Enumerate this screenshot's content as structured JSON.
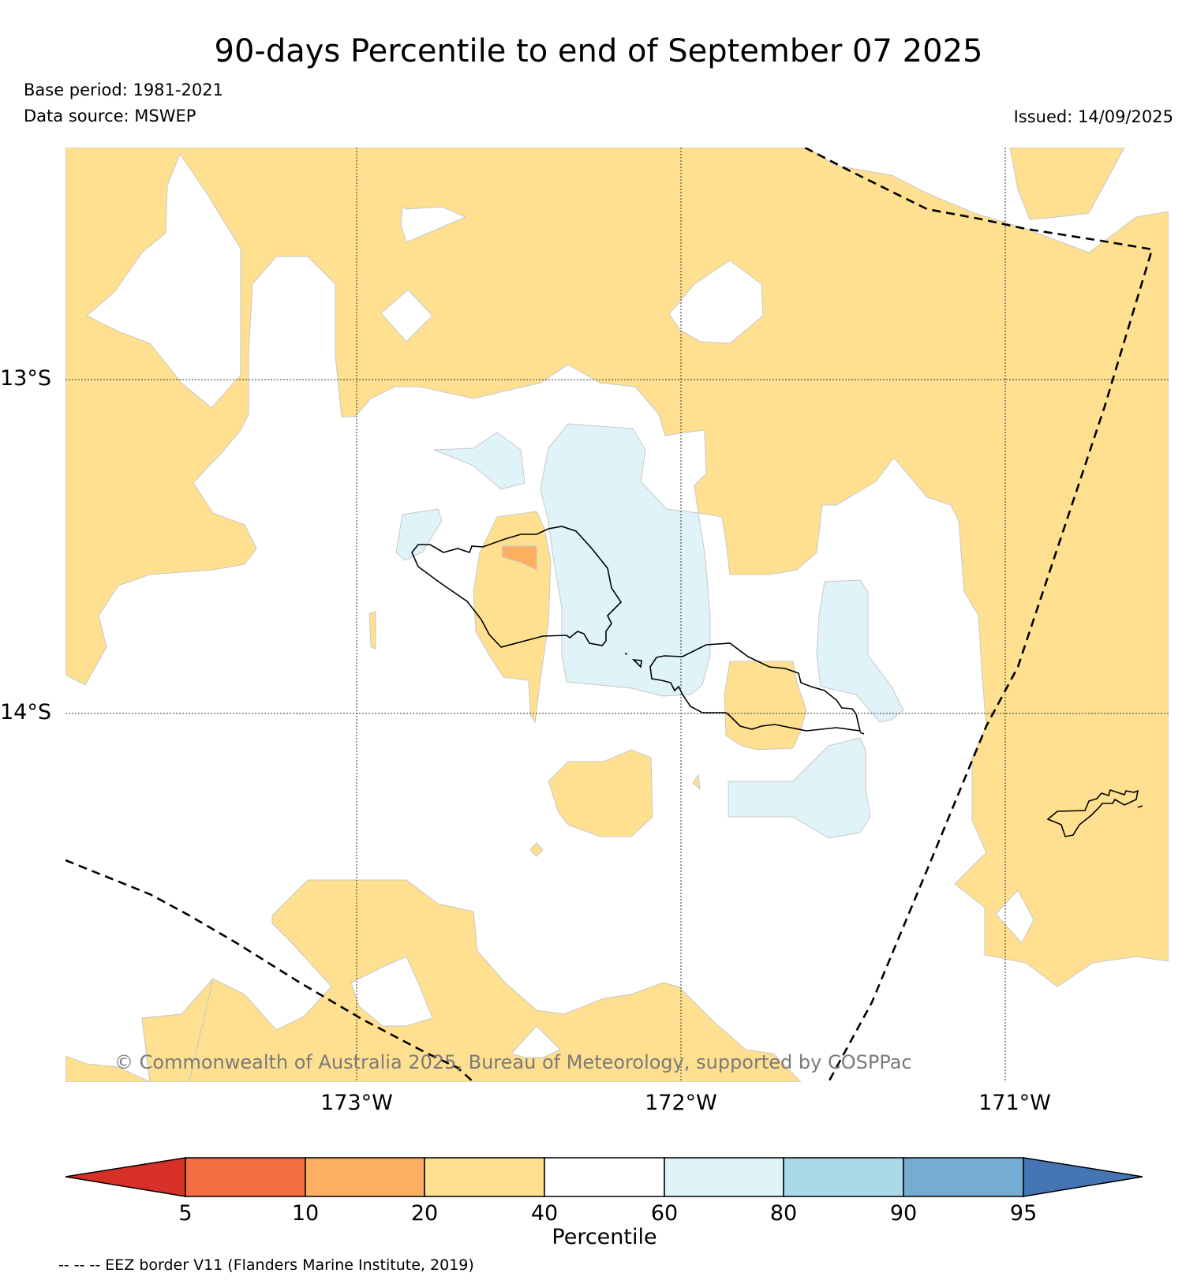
{
  "title": "90-days Percentile to end of September 07 2025",
  "base_period": "Base period: 1981-2021",
  "data_source": "Data source: MSWEP",
  "issued": "Issued: 14/09/2025",
  "latitude_labels": [
    "13°S",
    "14°S"
  ],
  "longitude_labels": [
    "173°W",
    "172°W",
    "171°W"
  ],
  "copyright": "© Commonwealth of Australia 2025, Bureau of Meteorology, supported by COSPPac",
  "colorbar": {
    "title": "Percentile",
    "tick_labels": [
      "5",
      "10",
      "20",
      "40",
      "60",
      "80",
      "90",
      "95"
    ],
    "colors": [
      "#d73027",
      "#f46d43",
      "#fdae61",
      "#fee090",
      "#ffffff",
      "#e0f3f8",
      "#abd9e9",
      "#74add1",
      "#4575b4"
    ]
  },
  "eez_note": "-- -- -- EEZ border V11 (Flanders Marine Institute, 2019)",
  "legend_categories": {
    "below_20": "#fdae61",
    "range_20_40": "#fee090",
    "range_40_60": "#ffffff",
    "range_60_80": "#e0f3f8",
    "coastline": "#000000",
    "eez_border": "#000000"
  }
}
